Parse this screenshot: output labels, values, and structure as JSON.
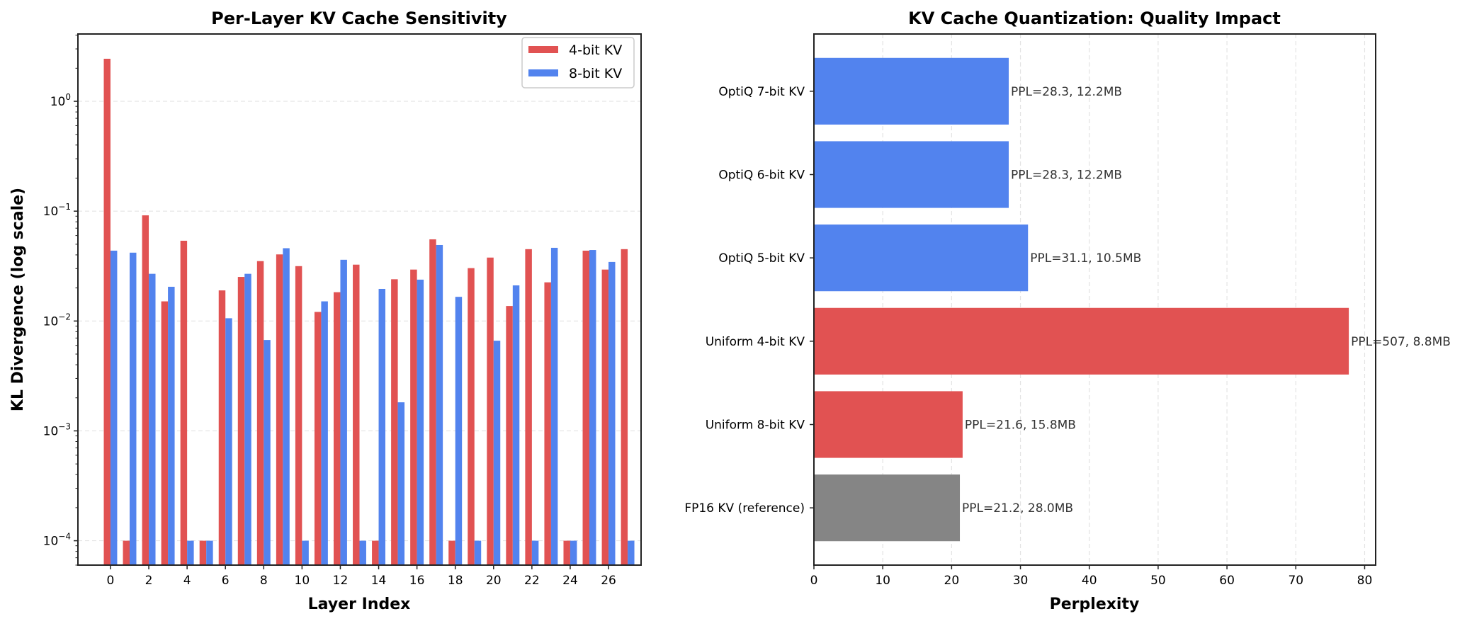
{
  "chart_data": [
    {
      "type": "bar",
      "title": "Per-Layer KV Cache Sensitivity",
      "xlabel": "Layer Index",
      "ylabel": "KL Divergence (log scale)",
      "yscale": "log",
      "ylim": [
        6e-05,
        4.1
      ],
      "xlim": [
        -1.7,
        27.7
      ],
      "grid": "y, dashed",
      "legend": "top-right",
      "categories": [
        0,
        1,
        2,
        3,
        4,
        5,
        6,
        7,
        8,
        9,
        10,
        11,
        12,
        13,
        14,
        15,
        16,
        17,
        18,
        19,
        20,
        21,
        22,
        23,
        24,
        25,
        26,
        27
      ],
      "xticks": [
        0,
        2,
        4,
        6,
        8,
        10,
        12,
        14,
        16,
        18,
        20,
        22,
        24,
        26
      ],
      "yticks": [
        {
          "value": 0.0001,
          "label": "10^-4"
        },
        {
          "value": 0.001,
          "label": "10^-3"
        },
        {
          "value": 0.01,
          "label": "10^-2"
        },
        {
          "value": 0.1,
          "label": "10^-1"
        },
        {
          "value": 1,
          "label": "10^0"
        }
      ],
      "series": [
        {
          "name": "4-bit KV",
          "color": "#e15252",
          "values": [
            2.44,
            0.0001,
            0.0916,
            0.0151,
            0.0538,
            0.0001,
            0.019,
            0.0252,
            0.0351,
            0.0404,
            0.0316,
            0.0121,
            0.0183,
            0.0326,
            0.0001,
            0.024,
            0.0294,
            0.0554,
            0.0001,
            0.0303,
            0.0378,
            0.0137,
            0.0451,
            0.0225,
            0.0001,
            0.0437,
            0.0294,
            0.0451
          ]
        },
        {
          "name": "8-bit KV",
          "color": "#5283ee",
          "values": [
            0.0437,
            0.0419,
            0.0269,
            0.0205,
            0.0001,
            0.0001,
            0.0106,
            0.0269,
            0.00672,
            0.046,
            0.0001,
            0.0151,
            0.0361,
            0.0001,
            0.0196,
            0.00182,
            0.0238,
            0.0492,
            0.0166,
            0.0001,
            0.00662,
            0.0211,
            0.0001,
            0.0464,
            0.0001,
            0.0443,
            0.0345,
            0.0001
          ]
        }
      ]
    },
    {
      "type": "bar",
      "orientation": "horizontal",
      "title": "KV Cache Quantization: Quality Impact",
      "xlabel": "Perplexity",
      "ylabel": "",
      "xlim": [
        0,
        81.6
      ],
      "grid": "x, dashed",
      "xticks": [
        0,
        10,
        20,
        30,
        40,
        50,
        60,
        70,
        80
      ],
      "categories": [
        "FP16 KV (reference)",
        "Uniform 8-bit KV",
        "Uniform 4-bit KV",
        "OptiQ 5-bit KV",
        "OptiQ 6-bit KV",
        "OptiQ 7-bit KV"
      ],
      "values": [
        21.2,
        21.6,
        77.7,
        31.1,
        28.3,
        28.3
      ],
      "colors": [
        "#858585",
        "#e15252",
        "#e15252",
        "#5283ee",
        "#5283ee",
        "#5283ee"
      ],
      "data_labels": [
        "PPL=21.2, 28.0MB",
        "PPL=21.6, 15.8MB",
        "PPL=507, 8.8MB",
        "PPL=31.1, 10.5MB",
        "PPL=28.3, 12.2MB",
        "PPL=28.3, 12.2MB"
      ]
    }
  ]
}
